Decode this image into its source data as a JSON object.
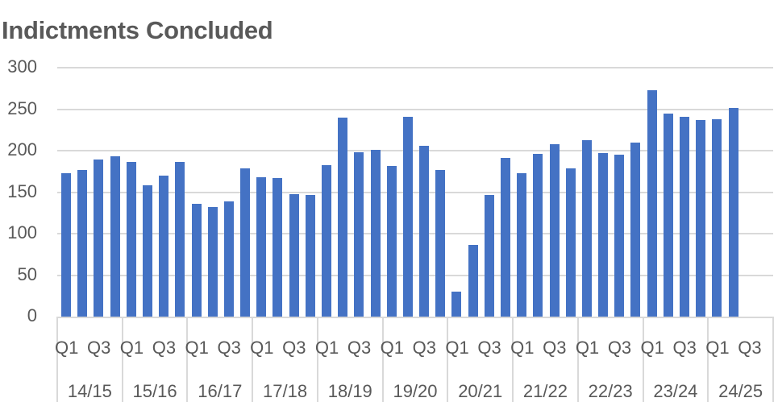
{
  "chart_data": {
    "type": "bar",
    "title": "Indictments Concluded",
    "xlabel": "",
    "ylabel": "",
    "ylim": [
      0,
      300
    ],
    "yticks": [
      0,
      50,
      100,
      150,
      200,
      250,
      300
    ],
    "grid": true,
    "legend": "none",
    "bar_color": "#4472c4",
    "years": [
      "14/15",
      "15/16",
      "16/17",
      "17/18",
      "18/19",
      "19/20",
      "20/21",
      "21/22",
      "22/23",
      "23/24",
      "24/25"
    ],
    "quarter_tick_labels": [
      "Q1",
      "Q3"
    ],
    "categories": [
      "14/15 Q1",
      "14/15 Q2",
      "14/15 Q3",
      "14/15 Q4",
      "15/16 Q1",
      "15/16 Q2",
      "15/16 Q3",
      "15/16 Q4",
      "16/17 Q1",
      "16/17 Q2",
      "16/17 Q3",
      "16/17 Q4",
      "17/18 Q1",
      "17/18 Q2",
      "17/18 Q3",
      "17/18 Q4",
      "18/19 Q1",
      "18/19 Q2",
      "18/19 Q3",
      "18/19 Q4",
      "19/20 Q1",
      "19/20 Q2",
      "19/20 Q3",
      "19/20 Q4",
      "20/21 Q1",
      "20/21 Q2",
      "20/21 Q3",
      "20/21 Q4",
      "21/22 Q1",
      "21/22 Q2",
      "21/22 Q3",
      "21/22 Q4",
      "22/23 Q1",
      "22/23 Q2",
      "22/23 Q3",
      "22/23 Q4",
      "23/24 Q1",
      "23/24 Q2",
      "23/24 Q3",
      "23/24 Q4",
      "24/25 Q1",
      "24/25 Q2",
      "24/25 Q3",
      "24/25 Q4"
    ],
    "values": [
      173,
      177,
      189,
      193,
      186,
      158,
      170,
      186,
      136,
      132,
      139,
      179,
      168,
      167,
      148,
      147,
      183,
      240,
      198,
      201,
      182,
      241,
      206,
      177,
      30,
      86,
      147,
      191,
      173,
      196,
      208,
      179,
      213,
      197,
      195,
      210,
      273,
      245,
      241,
      237,
      238,
      251,
      null,
      null
    ]
  }
}
